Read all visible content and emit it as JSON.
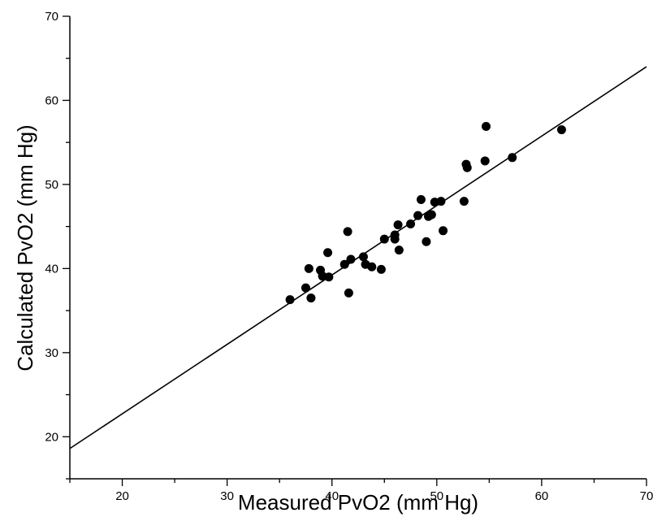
{
  "chart_data": {
    "type": "scatter",
    "title": "",
    "xlabel": "Measured PvO2 (mm Hg)",
    "ylabel": "Calculated PvO2 (mm Hg)",
    "xlim": [
      15,
      70
    ],
    "ylim": [
      15,
      70
    ],
    "x_ticks": [
      20,
      30,
      40,
      50,
      60,
      70
    ],
    "y_ticks": [
      20,
      30,
      40,
      50,
      60,
      70
    ],
    "x_tick_labels": [
      "20",
      "30",
      "40",
      "50",
      "60",
      "70"
    ],
    "y_tick_labels": [
      "20",
      "30",
      "40",
      "50",
      "60",
      "70"
    ],
    "grid": false,
    "series": [
      {
        "type": "scatter",
        "points": [
          [
            36.0,
            36.3
          ],
          [
            37.5,
            37.7
          ],
          [
            37.8,
            40.0
          ],
          [
            38.0,
            36.5
          ],
          [
            38.9,
            39.8
          ],
          [
            39.1,
            39.1
          ],
          [
            39.6,
            41.9
          ],
          [
            39.7,
            39.0
          ],
          [
            41.2,
            40.5
          ],
          [
            41.5,
            44.4
          ],
          [
            41.6,
            37.1
          ],
          [
            41.8,
            41.1
          ],
          [
            43.0,
            41.4
          ],
          [
            43.2,
            40.5
          ],
          [
            43.8,
            40.2
          ],
          [
            44.7,
            39.9
          ],
          [
            45.0,
            43.5
          ],
          [
            46.0,
            44.0
          ],
          [
            46.0,
            43.5
          ],
          [
            46.3,
            45.2
          ],
          [
            46.4,
            42.2
          ],
          [
            47.5,
            45.3
          ],
          [
            48.2,
            46.3
          ],
          [
            48.5,
            48.2
          ],
          [
            49.0,
            43.2
          ],
          [
            49.2,
            46.2
          ],
          [
            49.5,
            46.4
          ],
          [
            49.8,
            47.9
          ],
          [
            50.4,
            48.0
          ],
          [
            50.6,
            44.5
          ],
          [
            52.6,
            48.0
          ],
          [
            52.8,
            52.4
          ],
          [
            52.9,
            52.0
          ],
          [
            54.6,
            52.8
          ],
          [
            54.7,
            56.9
          ],
          [
            57.2,
            53.2
          ],
          [
            61.9,
            56.5
          ]
        ]
      },
      {
        "type": "line",
        "x": [
          15,
          70
        ],
        "y": [
          18.6,
          64.0
        ]
      }
    ]
  }
}
